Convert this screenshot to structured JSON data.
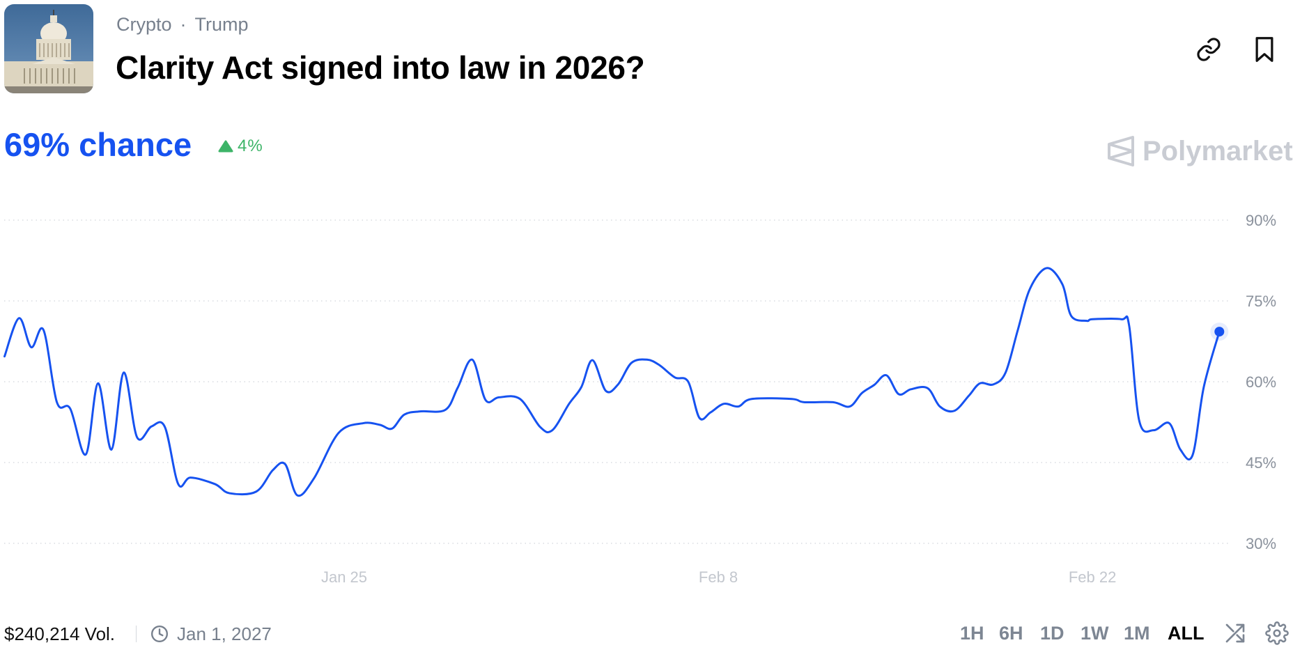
{
  "header": {
    "categories": [
      "Crypto",
      "Trump"
    ],
    "separator": "·",
    "title": "Clarity Act signed into law in 2026?",
    "thumbnail_alt": "US Capitol building",
    "icons": [
      "link-icon",
      "bookmark-icon"
    ]
  },
  "summary": {
    "chance_label": "69% chance",
    "change_label": "4%",
    "change_direction": "up",
    "brand": "Polymarket"
  },
  "colors": {
    "accent": "#1652f0",
    "positive": "#3db468",
    "muted": "#77808d",
    "grid": "#d9dce1"
  },
  "chart_data": {
    "type": "line",
    "title": "",
    "xlabel": "",
    "ylabel": "",
    "ylim": [
      30,
      90
    ],
    "y_ticks": [
      90,
      75,
      60,
      45,
      30
    ],
    "y_tick_labels": [
      "90%",
      "75%",
      "60%",
      "45%",
      "30%"
    ],
    "x_tick_labels": [
      "Jan 25",
      "Feb 8",
      "Feb 22"
    ],
    "grid": "horizontal dotted",
    "series": [
      {
        "color": "#1652f0",
        "points": [
          [
            "Jan 12 07:00",
            64.7
          ],
          [
            "Jan 12 20:00",
            71.8
          ],
          [
            "Jan 13 07:00",
            66.4
          ],
          [
            "Jan 13 18:00",
            69.6
          ],
          [
            "Jan 14 06:00",
            56.2
          ],
          [
            "Jan 14 18:00",
            55.0
          ],
          [
            "Jan 15 08:00",
            46.5
          ],
          [
            "Jan 15 19:00",
            59.7
          ],
          [
            "Jan 16 07:00",
            47.4
          ],
          [
            "Jan 16 18:00",
            61.7
          ],
          [
            "Jan 17 06:00",
            49.7
          ],
          [
            "Jan 17 19:00",
            51.7
          ],
          [
            "Jan 18 07:00",
            51.6
          ],
          [
            "Jan 18 19:00",
            41.0
          ],
          [
            "Jan 19 06:00",
            42.2
          ],
          [
            "Jan 20 04:00",
            41.0
          ],
          [
            "Jan 20 17:00",
            39.3
          ],
          [
            "Jan 21 17:00",
            39.6
          ],
          [
            "Jan 22 08:00",
            43.6
          ],
          [
            "Jan 22 19:00",
            44.7
          ],
          [
            "Jan 23 06:00",
            38.9
          ],
          [
            "Jan 23 21:00",
            42.1
          ],
          [
            "Jan 24 19:00",
            50.5
          ],
          [
            "Jan 25 17:00",
            52.3
          ],
          [
            "Jan 26 08:00",
            52.0
          ],
          [
            "Jan 26 19:00",
            51.3
          ],
          [
            "Jan 27 06:00",
            53.9
          ],
          [
            "Jan 27 21:00",
            54.5
          ],
          [
            "Jan 28 19:00",
            54.8
          ],
          [
            "Jan 29 06:00",
            58.9
          ],
          [
            "Jan 29 19:00",
            64.1
          ],
          [
            "Jan 30 07:00",
            56.6
          ],
          [
            "Jan 30 19:00",
            57.1
          ],
          [
            "Jan 31 14:00",
            56.8
          ],
          [
            "Feb 1 08:00",
            51.6
          ],
          [
            "Feb 1 19:00",
            51.0
          ],
          [
            "Feb 2 10:00",
            55.9
          ],
          [
            "Feb 2 21:00",
            59.0
          ],
          [
            "Feb 3 07:00",
            64.0
          ],
          [
            "Feb 3 19:00",
            58.3
          ],
          [
            "Feb 4 06:00",
            59.5
          ],
          [
            "Feb 4 18:00",
            63.5
          ],
          [
            "Feb 5 08:00",
            64.1
          ],
          [
            "Feb 5 19:00",
            63.1
          ],
          [
            "Feb 6 09:00",
            60.8
          ],
          [
            "Feb 6 21:00",
            60.0
          ],
          [
            "Feb 7 07:00",
            53.3
          ],
          [
            "Feb 7 17:00",
            54.3
          ],
          [
            "Feb 8 05:00",
            55.9
          ],
          [
            "Feb 8 18:00",
            55.4
          ],
          [
            "Feb 9 06:00",
            56.8
          ],
          [
            "Feb 10 18:00",
            56.8
          ],
          [
            "Feb 11 05:00",
            56.2
          ],
          [
            "Feb 12 07:00",
            56.2
          ],
          [
            "Feb 12 22:00",
            55.4
          ],
          [
            "Feb 13 09:00",
            57.9
          ],
          [
            "Feb 13 20:00",
            59.4
          ],
          [
            "Feb 14 07:00",
            61.2
          ],
          [
            "Feb 14 18:00",
            57.7
          ],
          [
            "Feb 15 05:00",
            58.6
          ],
          [
            "Feb 15 20:00",
            58.8
          ],
          [
            "Feb 16 07:00",
            55.4
          ],
          [
            "Feb 16 20:00",
            54.6
          ],
          [
            "Feb 17 09:00",
            57.4
          ],
          [
            "Feb 17 19:00",
            59.7
          ],
          [
            "Feb 18 07:00",
            59.5
          ],
          [
            "Feb 18 18:00",
            61.7
          ],
          [
            "Feb 19 05:00",
            69.6
          ],
          [
            "Feb 19 16:00",
            77.3
          ],
          [
            "Feb 20 07:00",
            81.1
          ],
          [
            "Feb 20 21:00",
            78.1
          ],
          [
            "Feb 21 05:00",
            72.2
          ],
          [
            "Feb 21 19:00",
            71.3
          ],
          [
            "Feb 22 00:00",
            71.6
          ],
          [
            "Feb 23 02:00",
            71.6
          ],
          [
            "Feb 23 09:00",
            70.4
          ],
          [
            "Feb 23 18:00",
            52.8
          ],
          [
            "Feb 24 07:00",
            51.0
          ],
          [
            "Feb 24 21:00",
            52.3
          ],
          [
            "Feb 25 07:00",
            47.4
          ],
          [
            "Feb 25 18:00",
            46.4
          ],
          [
            "Feb 26 04:00",
            59.0
          ],
          [
            "Feb 26 18:00",
            69.3
          ]
        ]
      }
    ]
  },
  "footer": {
    "volume": "$240,214 Vol.",
    "end_date": "Jan 1, 2027",
    "ranges": [
      "1H",
      "6H",
      "1D",
      "1W",
      "1M",
      "ALL"
    ],
    "active_range": "ALL"
  }
}
